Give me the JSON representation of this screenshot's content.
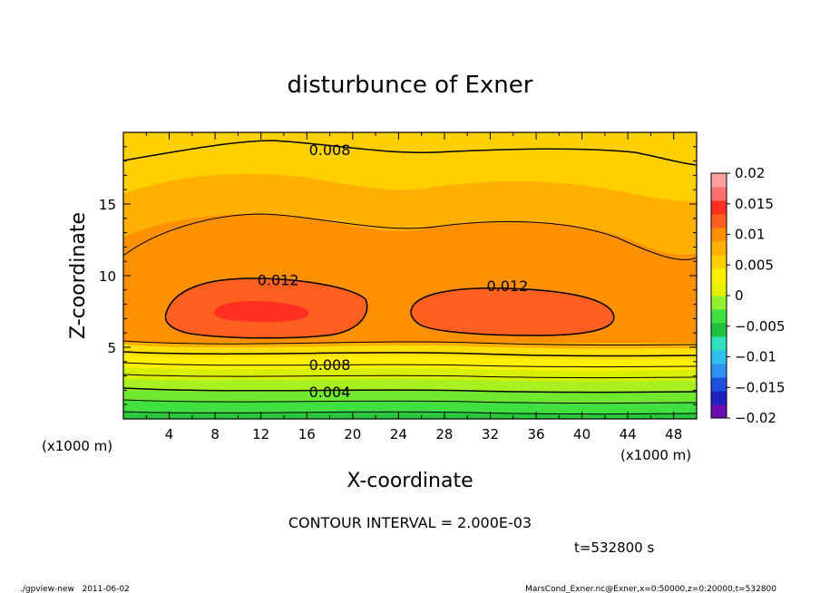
{
  "chart_data": {
    "type": "heatmap",
    "title": "disturbunce of Exner",
    "xlabel": "X-coordinate",
    "ylabel": "Z-coordinate",
    "x_unit_label": "(x1000 m)",
    "x_unit_label_right": "(x1000 m)",
    "xlim": [
      0,
      50
    ],
    "ylim": [
      0,
      20
    ],
    "x_ticks": [
      4,
      8,
      12,
      16,
      20,
      24,
      28,
      32,
      36,
      40,
      44,
      48
    ],
    "y_ticks": [
      5,
      10,
      15
    ],
    "contour_interval_text": "CONTOUR INTERVAL = 2.000E-03",
    "contour_labels": [
      {
        "text": "0.008",
        "x": 18,
        "z": 18.8
      },
      {
        "text": "0.012",
        "x": 13.5,
        "z": 9.7
      },
      {
        "text": "0.012",
        "x": 33.5,
        "z": 9.3
      },
      {
        "text": "0.008",
        "x": 18,
        "z": 3.8
      },
      {
        "text": "0.004",
        "x": 18,
        "z": 1.9
      }
    ],
    "colorbar": {
      "ticks": [
        0.02,
        0.015,
        0.01,
        0.005,
        0,
        -0.005,
        -0.01,
        -0.015,
        -0.02
      ],
      "tick_labels": [
        "0.02",
        "0.015",
        "0.01",
        "0.005",
        "0",
        "−0.005",
        "−0.01",
        "−0.015",
        "−0.02"
      ],
      "min": -0.02,
      "max": 0.02,
      "colors_low_to_high": [
        "#6a0dad",
        "#2020c0",
        "#2050e0",
        "#3090f0",
        "#30c0f0",
        "#30e0c0",
        "#20c040",
        "#40e040",
        "#90f030",
        "#e8f000",
        "#fff000",
        "#ffd000",
        "#ffb000",
        "#ff9000",
        "#ff6020",
        "#ff3020",
        "#ff7070",
        "#ffa0a0"
      ]
    },
    "fill_colors": {
      "0.000-0.002": "#40e040",
      "0.002-0.004": "#90f030",
      "0.004-0.006": "#e8f000",
      "0.006-0.008": "#ffe000",
      "0.008-0.010": "#ffc000",
      "0.010-0.012": "#ff9a00",
      "0.012-0.014": "#ff6020",
      "0.014-0.016": "#ff3020"
    }
  },
  "footer": {
    "time": "t=532800 s",
    "left": "./gpview-new   2011-06-02",
    "right": "MarsCond_Exner.nc@Exner,x=0:50000,z=0:20000,t=532800"
  }
}
